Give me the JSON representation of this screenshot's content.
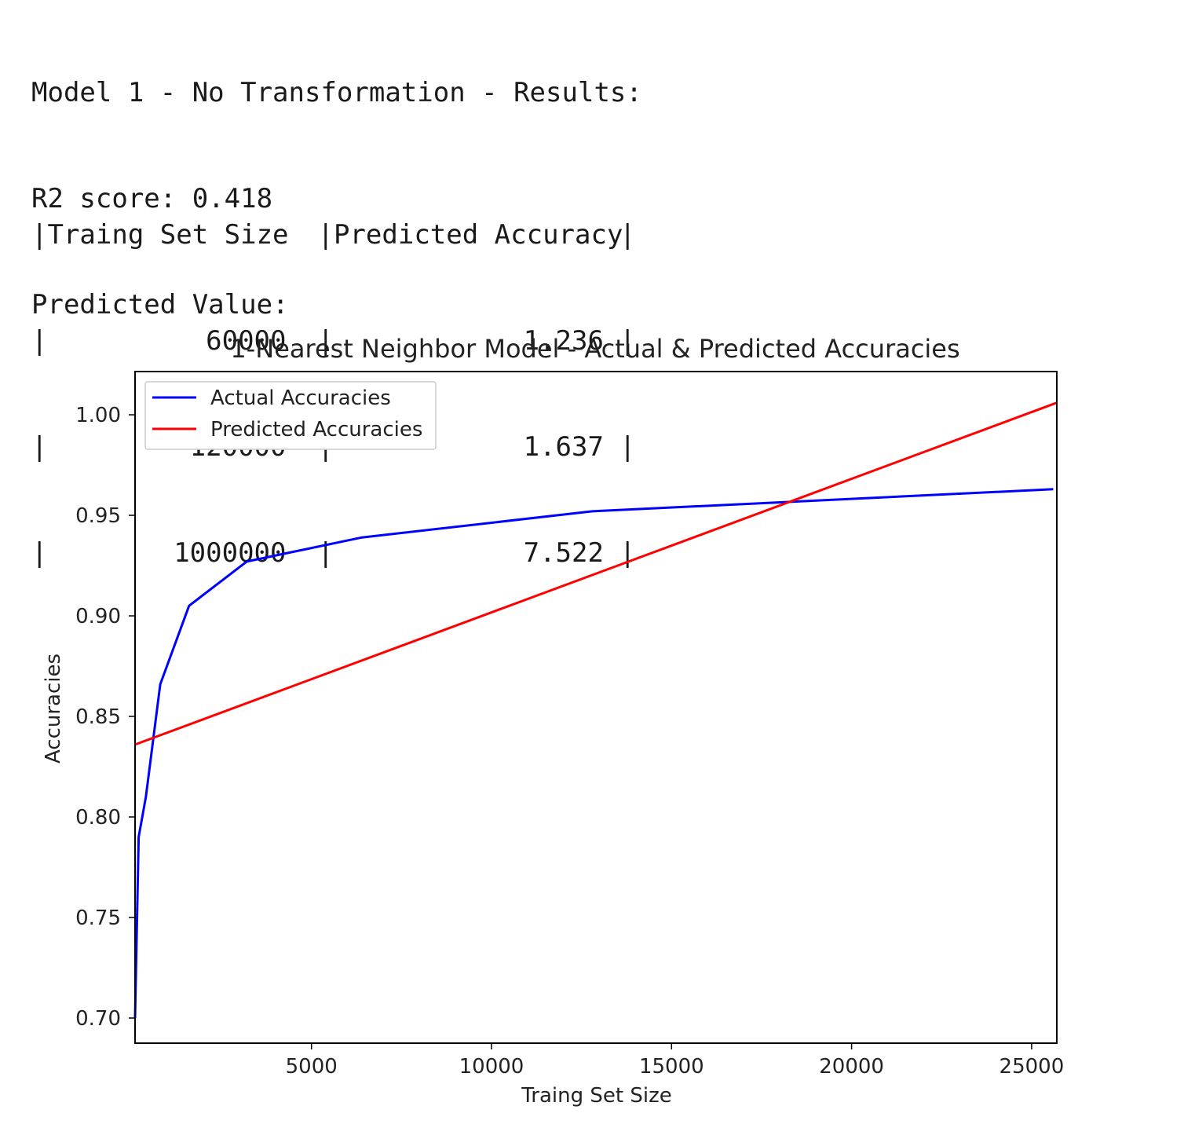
{
  "output": {
    "line1": "Model 1 - No Transformation - Results:",
    "line2": "R2 score: 0.418",
    "line3": "Predicted Value:",
    "pipe": "|",
    "table": {
      "headers": [
        "Traing Set Size",
        "Predicted Accuracy"
      ],
      "rows": [
        [
          "60000",
          "1.236"
        ],
        [
          "120000",
          "1.637"
        ],
        [
          "1000000",
          "7.522"
        ]
      ]
    }
  },
  "chart_data": {
    "type": "line",
    "title": "1-Nearest Neighbor Model - Actual & Predicted Accuracies",
    "xlabel": "Traing Set Size",
    "ylabel": "Accuracies",
    "xlim": [
      100,
      25700
    ],
    "ylim": [
      0.6875,
      1.0215
    ],
    "xticks": [
      5000,
      10000,
      15000,
      20000,
      25000
    ],
    "xtick_labels": [
      "5000",
      "10000",
      "15000",
      "20000",
      "25000"
    ],
    "yticks": [
      0.7,
      0.75,
      0.8,
      0.85,
      0.9,
      0.95,
      1.0
    ],
    "ytick_labels": [
      "0.70",
      "0.75",
      "0.80",
      "0.85",
      "0.90",
      "0.95",
      "1.00"
    ],
    "legend_position": "upper-left",
    "series": [
      {
        "name": "Actual Accuracies",
        "color": "#0000ff",
        "x": [
          100,
          200,
          400,
          800,
          1600,
          3200,
          6400,
          12800,
          25600
        ],
        "y": [
          0.7,
          0.79,
          0.81,
          0.866,
          0.905,
          0.927,
          0.939,
          0.952,
          0.963
        ]
      },
      {
        "name": "Predicted Accuracies",
        "color": "#ff0000",
        "x": [
          100,
          25700
        ],
        "y": [
          0.836,
          1.006
        ]
      }
    ]
  }
}
